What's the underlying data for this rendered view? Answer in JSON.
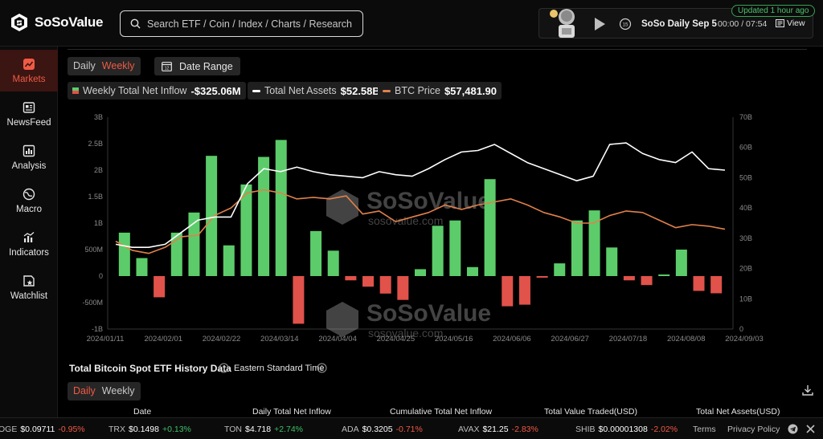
{
  "brand": {
    "name": "SoSoValue"
  },
  "search": {
    "placeholder": "Search ETF / Coin / Index / Charts / Research"
  },
  "player": {
    "title": "SoSo Daily Sep 5",
    "time": "00:00 / 07:54",
    "view_label": "View",
    "updated": "Updated 1 hour ago"
  },
  "sidebar": {
    "items": [
      {
        "label": "Markets",
        "icon": "chart-icon",
        "active": true
      },
      {
        "label": "NewsFeed",
        "icon": "news-icon"
      },
      {
        "label": "Analysis",
        "icon": "analysis-icon"
      },
      {
        "label": "Macro",
        "icon": "globe-icon"
      },
      {
        "label": "Indicators",
        "icon": "indicators-icon"
      },
      {
        "label": "Watchlist",
        "icon": "watchlist-icon"
      }
    ]
  },
  "controls": {
    "period": [
      "Daily",
      "Weekly"
    ],
    "period_selected": "Weekly",
    "date_range": "Date Range"
  },
  "legend": {
    "inflow_label": "Weekly Total Net Inflow",
    "inflow_value": "-$325.06M",
    "assets_label": "Total Net Assets",
    "assets_value": "$52.58B",
    "btc_label": "BTC Price",
    "btc_value": "$57,481.90"
  },
  "colors": {
    "accent": "#f05a45",
    "positive": "#5ccc6a",
    "negative": "#e0524a",
    "assets_line": "#ffffff",
    "btc_line": "#e0814a"
  },
  "watermark": {
    "text": "SoSoValue",
    "url": "sosovalue.com"
  },
  "chart_data": {
    "type": "bar+line",
    "x_tick_labels": [
      "2024/01/11",
      "2024/02/01",
      "2024/02/22",
      "2024/03/14",
      "2024/04/04",
      "2024/04/25",
      "2024/05/16",
      "2024/06/06",
      "2024/06/27",
      "2024/07/18",
      "2024/08/08",
      "2024/09/03"
    ],
    "left_axis": {
      "ticks": [
        "-1B",
        "-500M",
        "0",
        "500M",
        "1B",
        "1.5B",
        "2B",
        "2.5B",
        "3B"
      ],
      "range": [
        -1000,
        3000
      ],
      "unit": "M"
    },
    "right_axis": {
      "ticks": [
        "0",
        "10B",
        "20B",
        "30B",
        "40B",
        "50B",
        "60B",
        "70B"
      ],
      "range": [
        0,
        70
      ],
      "unit": "B"
    },
    "series": [
      {
        "name": "Weekly Total Net Inflow",
        "kind": "bar",
        "values": [
          820,
          340,
          -400,
          820,
          1200,
          2270,
          580,
          1730,
          2250,
          2570,
          -900,
          850,
          480,
          -80,
          -200,
          -330,
          -450,
          130,
          950,
          1050,
          170,
          1830,
          -570,
          -540,
          -30,
          240,
          1050,
          1240,
          540,
          -80,
          -170,
          30,
          500,
          -280,
          -325
        ]
      },
      {
        "name": "Total Net Assets",
        "kind": "line",
        "values": [
          28,
          27,
          27,
          28,
          32,
          36,
          37,
          37,
          48,
          53,
          52,
          53.5,
          52,
          51,
          50.5,
          50,
          52,
          51,
          50.5,
          53,
          56,
          58.5,
          59,
          61,
          58,
          55,
          53,
          51,
          49,
          50.5,
          61,
          61.5,
          58,
          56,
          55,
          58.5,
          53,
          52.5
        ]
      },
      {
        "name": "BTC Price",
        "kind": "line",
        "values": [
          29,
          26,
          25,
          27,
          30.5,
          31,
          37.5,
          40,
          45,
          46,
          45,
          43,
          43.5,
          43,
          44,
          38,
          39,
          35.5,
          37,
          38.5,
          41,
          39.5,
          41,
          42,
          43,
          41,
          38.5,
          37,
          35,
          35,
          37.5,
          39,
          38.5,
          36,
          33.5,
          34.5,
          34,
          33
        ]
      }
    ]
  },
  "history": {
    "title": "Total Bitcoin Spot ETF History Data",
    "timezone": "Eastern Standard Time",
    "period": [
      "Daily",
      "Weekly"
    ],
    "period_selected": "Daily",
    "columns": [
      "Date",
      "Daily Total Net Inflow",
      "Cumulative Total Net Inflow",
      "Total Value Traded(USD)",
      "Total Net Assets(USD)"
    ]
  },
  "ticker": [
    {
      "sym": "OGE",
      "price": "$0.09711",
      "change": "-0.95%",
      "dir": "neg"
    },
    {
      "sym": "TRX",
      "price": "$0.1498",
      "change": "+0.13%",
      "dir": "pos"
    },
    {
      "sym": "TON",
      "price": "$4.718",
      "change": "+2.74%",
      "dir": "pos"
    },
    {
      "sym": "ADA",
      "price": "$0.3205",
      "change": "-0.71%",
      "dir": "neg"
    },
    {
      "sym": "AVAX",
      "price": "$21.25",
      "change": "-2.83%",
      "dir": "neg"
    },
    {
      "sym": "SHIB",
      "price": "$0.00001308",
      "change": "-2.02%",
      "dir": "neg"
    }
  ],
  "footer": {
    "terms": "Terms",
    "privacy": "Privacy Policy"
  }
}
